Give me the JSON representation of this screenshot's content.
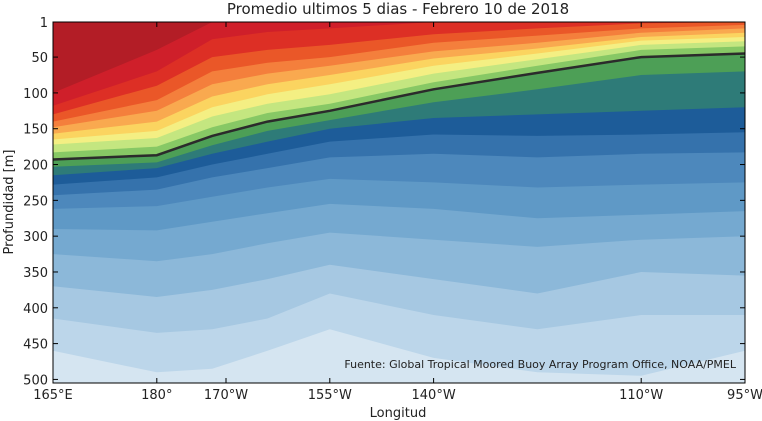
{
  "chart_data": {
    "type": "area",
    "title": "Promedio ultimos 5 dias - Febrero 10 de 2018",
    "xlabel": "Longitud",
    "ylabel": "Profundidad [m]",
    "note": "Fuente: Global Tropical Moored Buoy Array Program Office, NOAA/PMEL",
    "x_ticks": [
      {
        "value": 165,
        "label": "165°E"
      },
      {
        "value": 180,
        "label": "180°"
      },
      {
        "value": 190,
        "label": "170°W"
      },
      {
        "value": 205,
        "label": "155°W"
      },
      {
        "value": 220,
        "label": "140°W"
      },
      {
        "value": 250,
        "label": "110°W"
      },
      {
        "value": 265,
        "label": "95°W"
      }
    ],
    "y_ticks": [
      1,
      50,
      100,
      150,
      200,
      250,
      300,
      350,
      400,
      450,
      500
    ],
    "xlim": [
      165,
      265
    ],
    "ylim": [
      1,
      505
    ],
    "y_reversed": true,
    "x": [
      165,
      180,
      188,
      196,
      205,
      220,
      235,
      250,
      265
    ],
    "colors": [
      "#d5e5f1",
      "#bcd6ea",
      "#a6c8e2",
      "#8cb8d9",
      "#75a9d0",
      "#5f99c6",
      "#4d88bc",
      "#3572ac",
      "#1d5c99",
      "#2e7b78",
      "#4d9f56",
      "#87c865",
      "#c4e680",
      "#f4ef83",
      "#fbd460",
      "#f9a94f",
      "#f47f3c",
      "#ea5728",
      "#dd2f25",
      "#cf1f2a",
      "#b31d26"
    ],
    "isotherm_20c": [
      193,
      187,
      160,
      140,
      125,
      95,
      72,
      50,
      45
    ],
    "isolines": [
      [
        460,
        490,
        485,
        460,
        430,
        470,
        490,
        495,
        460
      ],
      [
        415,
        435,
        430,
        415,
        380,
        410,
        430,
        410,
        410
      ],
      [
        370,
        385,
        375,
        360,
        340,
        360,
        380,
        350,
        355
      ],
      [
        325,
        335,
        325,
        310,
        295,
        305,
        315,
        305,
        300
      ],
      [
        290,
        292,
        280,
        268,
        255,
        262,
        275,
        270,
        265
      ],
      [
        262,
        258,
        245,
        232,
        220,
        225,
        232,
        228,
        225
      ],
      [
        243,
        235,
        218,
        205,
        190,
        185,
        190,
        185,
        183
      ],
      [
        228,
        218,
        200,
        185,
        168,
        158,
        160,
        158,
        155
      ],
      [
        215,
        205,
        185,
        168,
        150,
        135,
        130,
        125,
        120
      ],
      [
        203,
        197,
        173,
        153,
        138,
        113,
        95,
        75,
        70
      ],
      [
        193,
        187,
        160,
        140,
        125,
        95,
        72,
        50,
        45
      ],
      [
        183,
        175,
        148,
        128,
        115,
        85,
        62,
        40,
        35
      ],
      [
        172,
        163,
        133,
        115,
        102,
        73,
        53,
        33,
        28
      ],
      [
        165,
        153,
        120,
        102,
        88,
        62,
        45,
        27,
        22
      ],
      [
        157,
        140,
        105,
        88,
        75,
        52,
        38,
        22,
        16
      ],
      [
        148,
        125,
        88,
        73,
        62,
        42,
        30,
        16,
        10
      ],
      [
        140,
        110,
        70,
        58,
        50,
        30,
        20,
        10,
        5
      ],
      [
        130,
        90,
        50,
        40,
        33,
        18,
        10,
        3,
        1
      ],
      [
        118,
        70,
        25,
        15,
        10,
        1,
        1,
        1,
        1
      ],
      [
        100,
        40,
        1,
        1,
        1,
        1,
        1,
        1,
        1
      ]
    ]
  }
}
